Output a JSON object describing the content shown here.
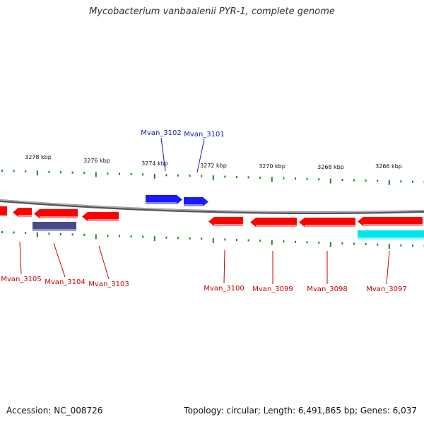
{
  "title": "Mycobacterium vanbaalenii PYR-1, complete genome",
  "footer": {
    "accession": "Accession: NC_008726",
    "summary": "Topology: circular; Length: 6,491,865 bp; Genes: 6,037"
  },
  "scale": {
    "unit": "kbp",
    "labels": [
      "3278 kbp",
      "3276 kbp",
      "3274 kbp",
      "3272 kbp",
      "3270 kbp",
      "3268 kbp",
      "3266 kbp"
    ]
  },
  "colors": {
    "forward_gene": "#1a1aff",
    "reverse_gene": "#ff0000",
    "purple_feature": "#4a4a8a",
    "cyan_feature": "#00e5ee",
    "tick": "#1a8a1a",
    "backbone": "#808080",
    "forward_label": "#1a1aaa",
    "reverse_label": "#cc0000"
  },
  "genes": [
    {
      "id": "Mvan_3102",
      "strand": "+"
    },
    {
      "id": "Mvan_3101",
      "strand": "+"
    },
    {
      "id": "Mvan_3105",
      "strand": "-"
    },
    {
      "id": "Mvan_3104",
      "strand": "-"
    },
    {
      "id": "Mvan_3103",
      "strand": "-"
    },
    {
      "id": "Mvan_3100",
      "strand": "-"
    },
    {
      "id": "Mvan_3099",
      "strand": "-"
    },
    {
      "id": "Mvan_3098",
      "strand": "-"
    },
    {
      "id": "Mvan_3097",
      "strand": "-"
    }
  ]
}
